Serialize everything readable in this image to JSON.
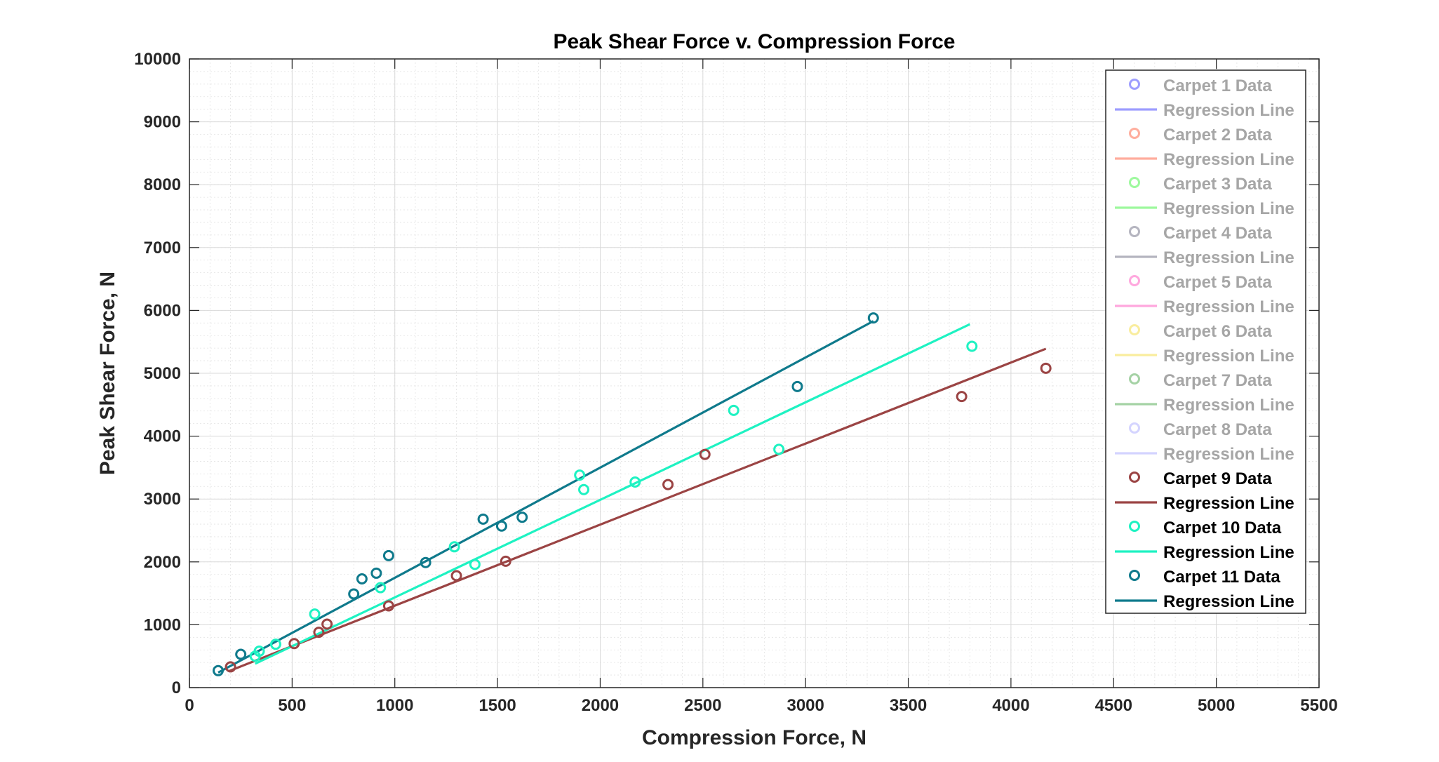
{
  "chart_data": {
    "type": "scatter",
    "title": "Peak Shear Force v. Compression Force",
    "xlabel": "Compression Force, N",
    "ylabel": "Peak Shear Force, N",
    "xlim": [
      0,
      5500
    ],
    "ylim": [
      0,
      10000
    ],
    "xticks": [
      0,
      500,
      1000,
      1500,
      2000,
      2500,
      3000,
      3500,
      4000,
      4500,
      5000,
      5500
    ],
    "yticks": [
      0,
      1000,
      2000,
      3000,
      4000,
      5000,
      6000,
      7000,
      8000,
      9000,
      10000
    ],
    "xtick_labels": [
      "0",
      "500",
      "1000",
      "1500",
      "2000",
      "2500",
      "3000",
      "3500",
      "4000",
      "4500",
      "5000",
      "5500"
    ],
    "ytick_labels": [
      "0",
      "1000",
      "2000",
      "3000",
      "4000",
      "5000",
      "6000",
      "7000",
      "8000",
      "9000",
      "10000"
    ],
    "grid": true,
    "minor_grid": true,
    "legend_position": "top-right",
    "series": [
      {
        "name": "Carpet 1 Data",
        "line_name": "Regression Line",
        "color": "#0000ff",
        "faded": true,
        "points": [],
        "line": []
      },
      {
        "name": "Carpet 2 Data",
        "line_name": "Regression Line",
        "color": "#ff2a00",
        "faded": true,
        "points": [],
        "line": []
      },
      {
        "name": "Carpet 3 Data",
        "line_name": "Regression Line",
        "color": "#00ee00",
        "faded": true,
        "points": [],
        "line": []
      },
      {
        "name": "Carpet 4 Data",
        "line_name": "Regression Line",
        "color": "#3c3c5a",
        "faded": true,
        "points": [],
        "line": []
      },
      {
        "name": "Carpet 5 Data",
        "line_name": "Regression Line",
        "color": "#ff1aa8",
        "faded": true,
        "points": [],
        "line": []
      },
      {
        "name": "Carpet 6 Data",
        "line_name": "Regression Line",
        "color": "#f0d000",
        "faded": true,
        "points": [],
        "line": []
      },
      {
        "name": "Carpet 7 Data",
        "line_name": "Regression Line",
        "color": "#138a13",
        "faded": true,
        "points": [],
        "line": []
      },
      {
        "name": "Carpet 8 Data",
        "line_name": "Regression Line",
        "color": "#8d8dff",
        "faded": true,
        "points": [],
        "line": []
      },
      {
        "name": "Carpet 9 Data",
        "line_name": "Regression Line",
        "color": "#9b4444",
        "faded": false,
        "points": [
          [
            200,
            330
          ],
          [
            510,
            700
          ],
          [
            630,
            880
          ],
          [
            670,
            1010
          ],
          [
            970,
            1300
          ],
          [
            1300,
            1780
          ],
          [
            1540,
            2010
          ],
          [
            2330,
            3230
          ],
          [
            2510,
            3710
          ],
          [
            3760,
            4630
          ],
          [
            4170,
            5080
          ]
        ],
        "line": [
          [
            190,
            260
          ],
          [
            4170,
            5390
          ]
        ]
      },
      {
        "name": "Carpet 10 Data",
        "line_name": "Regression Line",
        "color": "#1ef2c2",
        "faded": false,
        "points": [
          [
            320,
            500
          ],
          [
            340,
            580
          ],
          [
            420,
            690
          ],
          [
            610,
            1170
          ],
          [
            930,
            1590
          ],
          [
            1290,
            2240
          ],
          [
            1390,
            1960
          ],
          [
            1900,
            3380
          ],
          [
            1920,
            3150
          ],
          [
            2170,
            3270
          ],
          [
            2650,
            4410
          ],
          [
            2870,
            3790
          ],
          [
            3810,
            5430
          ]
        ],
        "line": [
          [
            320,
            380
          ],
          [
            3800,
            5780
          ]
        ]
      },
      {
        "name": "Carpet 11 Data",
        "line_name": "Regression Line",
        "color": "#0f7a8c",
        "faded": false,
        "points": [
          [
            140,
            270
          ],
          [
            250,
            530
          ],
          [
            800,
            1490
          ],
          [
            840,
            1730
          ],
          [
            910,
            1820
          ],
          [
            970,
            2100
          ],
          [
            1150,
            1990
          ],
          [
            1430,
            2680
          ],
          [
            1520,
            2570
          ],
          [
            1620,
            2710
          ],
          [
            2960,
            4790
          ],
          [
            3330,
            5880
          ]
        ],
        "line": [
          [
            140,
            240
          ],
          [
            3330,
            5830
          ]
        ]
      }
    ]
  }
}
